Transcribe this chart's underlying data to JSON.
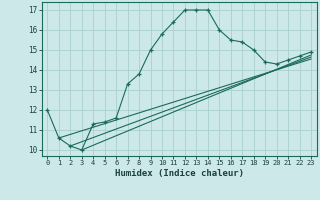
{
  "xlabel": "Humidex (Indice chaleur)",
  "background_color": "#cde8e8",
  "grid_color": "#aad0d0",
  "line_color": "#1a6b5a",
  "spine_color": "#1a6b5a",
  "text_color": "#1a4040",
  "xlim": [
    -0.5,
    23.5
  ],
  "ylim": [
    9.7,
    17.4
  ],
  "yticks": [
    10,
    11,
    12,
    13,
    14,
    15,
    16,
    17
  ],
  "xticks": [
    0,
    1,
    2,
    3,
    4,
    5,
    6,
    7,
    8,
    9,
    10,
    11,
    12,
    13,
    14,
    15,
    16,
    17,
    18,
    19,
    20,
    21,
    22,
    23
  ],
  "curve1_x": [
    0,
    1,
    2,
    3,
    4,
    5,
    6,
    7,
    8,
    9,
    10,
    11,
    12,
    13,
    14,
    15,
    16,
    17,
    18,
    19,
    20,
    21,
    22,
    23
  ],
  "curve1_y": [
    12.0,
    10.6,
    10.2,
    10.0,
    11.3,
    11.4,
    11.6,
    13.3,
    13.8,
    15.0,
    15.8,
    16.4,
    17.0,
    17.0,
    17.0,
    16.0,
    15.5,
    15.4,
    15.0,
    14.4,
    14.3,
    14.5,
    14.7,
    14.9
  ],
  "line1_x": [
    1,
    23
  ],
  "line1_y": [
    10.6,
    14.55
  ],
  "line2_x": [
    2,
    23
  ],
  "line2_y": [
    10.2,
    14.65
  ],
  "line3_x": [
    3,
    23
  ],
  "line3_y": [
    10.0,
    14.75
  ]
}
